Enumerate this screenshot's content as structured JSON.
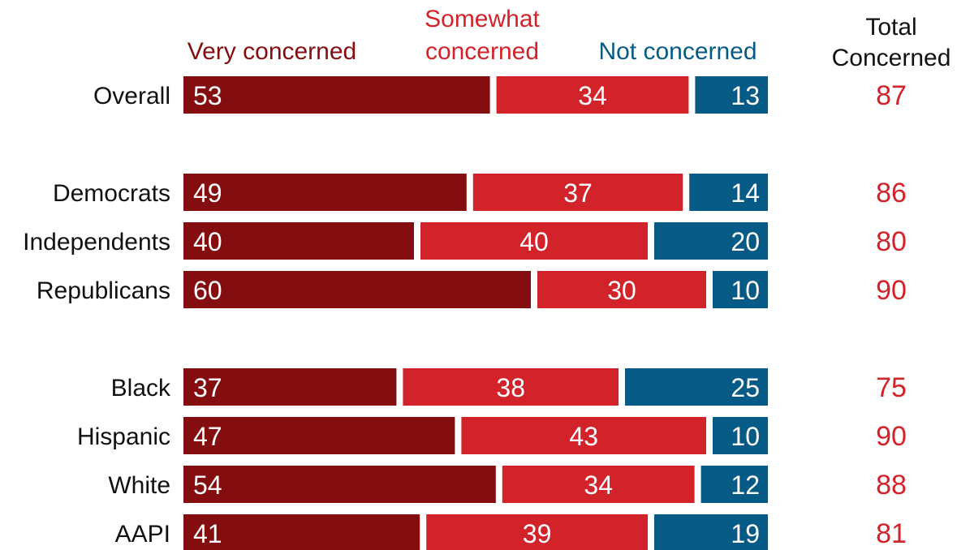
{
  "chart_data": {
    "type": "bar",
    "stacked": true,
    "orientation": "horizontal",
    "categories": [
      "Overall",
      "Democrats",
      "Independents",
      "Republicans",
      "Black",
      "Hispanic",
      "White",
      "AAPI"
    ],
    "groups": [
      [
        "Overall"
      ],
      [
        "Democrats",
        "Independents",
        "Republicans"
      ],
      [
        "Black",
        "Hispanic",
        "White",
        "AAPI"
      ]
    ],
    "series": [
      {
        "name": "Very concerned",
        "color": "#840d10",
        "values": [
          53,
          49,
          40,
          60,
          37,
          47,
          54,
          41
        ]
      },
      {
        "name_lines": [
          "Somewhat",
          "concerned"
        ],
        "color": "#d2232a",
        "values": [
          34,
          37,
          40,
          30,
          38,
          43,
          34,
          39
        ]
      },
      {
        "name": "Not concerned",
        "color": "#065a86",
        "values": [
          13,
          14,
          20,
          10,
          25,
          10,
          12,
          19
        ]
      }
    ],
    "total_column": {
      "header_lines": [
        "Total",
        "Concerned"
      ],
      "color": "#d2232a",
      "values": [
        87,
        86,
        80,
        90,
        75,
        90,
        88,
        81
      ]
    },
    "xlim": [
      0,
      100
    ],
    "grid": false
  }
}
